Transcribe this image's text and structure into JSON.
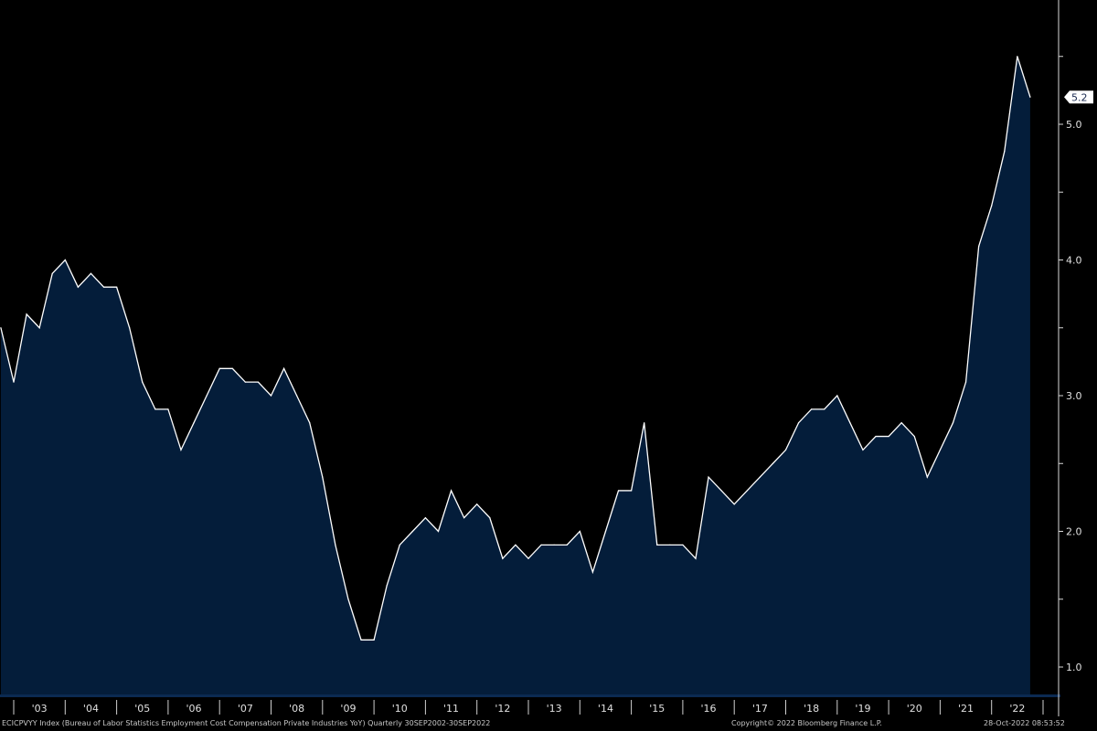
{
  "chart_data": {
    "type": "area",
    "title": "",
    "xlabel": "",
    "ylabel": "",
    "x_start": "2002-09-30",
    "x_end": "2022-09-30",
    "frequency": "Quarterly",
    "ylim": [
      0.8,
      5.8
    ],
    "y_ticks": [
      "1.0",
      "2.0",
      "3.0",
      "4.0",
      "5.0"
    ],
    "x_tick_labels": [
      "'03",
      "'04",
      "'05",
      "'06",
      "'07",
      "'08",
      "'09",
      "'10",
      "'11",
      "'12",
      "'13",
      "'14",
      "'15",
      "'16",
      "'17",
      "'18",
      "'19",
      "'20",
      "'21",
      "'22"
    ],
    "grid": false,
    "last_value_label": "5.2",
    "series": [
      {
        "values": [
          3.5,
          3.1,
          3.6,
          3.5,
          3.9,
          4.0,
          3.8,
          3.9,
          3.8,
          3.8,
          3.5,
          3.1,
          2.9,
          2.9,
          2.6,
          2.8,
          3.0,
          3.2,
          3.2,
          3.1,
          3.1,
          3.0,
          3.2,
          3.0,
          2.8,
          2.4,
          1.9,
          1.5,
          1.2,
          1.2,
          1.6,
          1.9,
          2.0,
          2.1,
          2.0,
          2.3,
          2.1,
          2.2,
          2.1,
          1.8,
          1.9,
          1.8,
          1.9,
          1.9,
          1.9,
          2.0,
          1.7,
          2.0,
          2.3,
          2.3,
          2.8,
          1.9,
          1.9,
          1.9,
          1.8,
          2.4,
          2.3,
          2.2,
          2.3,
          2.4,
          2.5,
          2.6,
          2.8,
          2.9,
          2.9,
          3.0,
          2.8,
          2.6,
          2.7,
          2.7,
          2.8,
          2.7,
          2.4,
          2.6,
          2.8,
          3.1,
          4.1,
          4.4,
          4.8,
          5.5,
          5.2
        ]
      }
    ],
    "colors": {
      "background": "#000000",
      "fill": "#041d3a",
      "line": "#ffffff",
      "axis_text": "#e0e0e0",
      "axis_band": "#0b2a52"
    }
  },
  "footer": {
    "description": "ECICPVYY Index (Bureau of Labor Statistics Employment Cost Compensation Private Industries YoY)  Quarterly 30SEP2002-30SEP2022",
    "copyright": "Copyright© 2022 Bloomberg Finance L.P.",
    "timestamp": "28-Oct-2022 08:53:52"
  }
}
